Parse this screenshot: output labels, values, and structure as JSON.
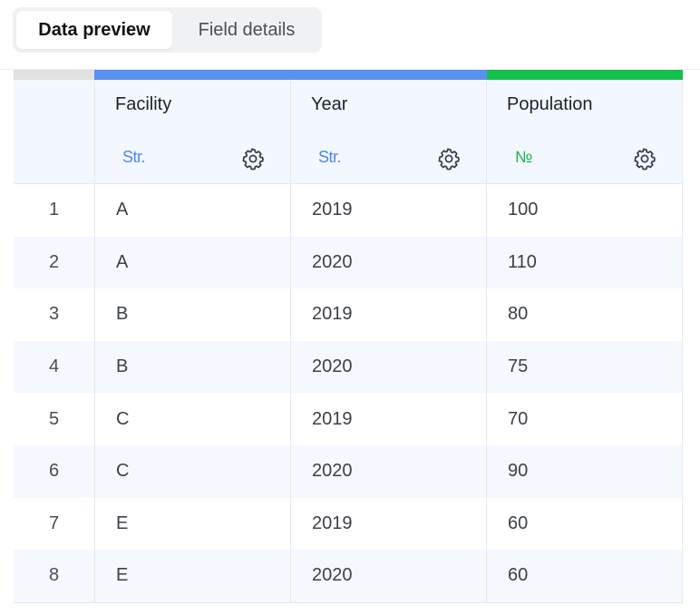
{
  "tabs": [
    {
      "label": "Data preview",
      "active": true
    },
    {
      "label": "Field details",
      "active": false
    }
  ],
  "columns": [
    {
      "name": "Facility",
      "type_label": "Str.",
      "type": "string",
      "color": "#5a8ff2"
    },
    {
      "name": "Year",
      "type_label": "Str.",
      "type": "string",
      "color": "#5a8ff2"
    },
    {
      "name": "Population",
      "type_label": "№",
      "type": "number",
      "color": "#12c04b"
    }
  ],
  "rows": [
    {
      "index": "1",
      "cells": [
        "A",
        "2019",
        "100"
      ]
    },
    {
      "index": "2",
      "cells": [
        "A",
        "2020",
        "110"
      ]
    },
    {
      "index": "3",
      "cells": [
        "B",
        "2019",
        "80"
      ]
    },
    {
      "index": "4",
      "cells": [
        "B",
        "2020",
        "75"
      ]
    },
    {
      "index": "5",
      "cells": [
        "C",
        "2019",
        "70"
      ]
    },
    {
      "index": "6",
      "cells": [
        "C",
        "2020",
        "90"
      ]
    },
    {
      "index": "7",
      "cells": [
        "E",
        "2019",
        "60"
      ]
    },
    {
      "index": "8",
      "cells": [
        "E",
        "2020",
        "60"
      ]
    }
  ],
  "icons": {
    "settings": "gear-icon"
  }
}
